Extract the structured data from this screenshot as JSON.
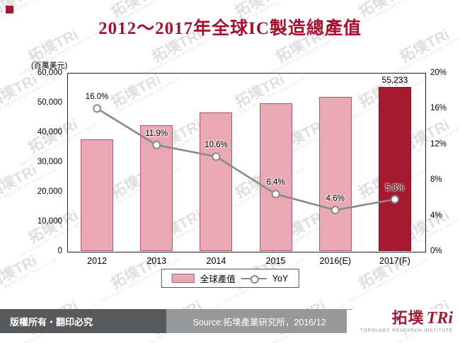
{
  "title": "2012～2017年全球IC製造總產值",
  "chart_data": {
    "type": "bar+line",
    "categories": [
      "2012",
      "2013",
      "2014",
      "2015",
      "2016(E)",
      "2017(F)"
    ],
    "series": [
      {
        "name": "全球產值",
        "type": "bar",
        "axis": "left",
        "values": [
          37700,
          42300,
          46700,
          49700,
          52000,
          55233
        ]
      },
      {
        "name": "YoY",
        "type": "line",
        "axis": "right",
        "values": [
          16.0,
          11.9,
          10.6,
          6.4,
          4.6,
          5.8
        ]
      }
    ],
    "bar_labels": [
      "",
      "",
      "",
      "",
      "",
      "55,233"
    ],
    "line_labels": [
      "16.0%",
      "11.9%",
      "10.6%",
      "6.4%",
      "4.6%",
      "5.8%"
    ],
    "highlight_index": 5,
    "left_axis": {
      "label": "(百萬美元)",
      "min": 0,
      "max": 60000,
      "step": 10000,
      "ticks": [
        "0",
        "10,000",
        "20,000",
        "30,000",
        "40,000",
        "50,000",
        "60,000"
      ]
    },
    "right_axis": {
      "min": 0,
      "max": 20,
      "step": 4,
      "ticks": [
        "0%",
        "4%",
        "8%",
        "12%",
        "16%",
        "20%"
      ]
    },
    "colors": {
      "bar": "#e9a9b4",
      "bar_border": "#b3556a",
      "bar_highlight": "#a6192e",
      "bar_highlight_border": "#7d1022",
      "line": "#8a8a8a"
    },
    "legend_position": "bottom"
  },
  "legend": {
    "bar_label": "全球產值",
    "line_label": "YoY"
  },
  "footer": {
    "copyright": "版權所有‧翻印必究",
    "source": "Source:拓墣產業研究所，2016/12"
  },
  "logo": {
    "text": "拓墣",
    "brand": "TRi",
    "subtext": "TOPOLOGY RESEARCH INSTITUTE"
  },
  "watermark": {
    "brand": "拓墣TRi",
    "subtext": "TOPOLOGY RESEARCH INSTITUTE"
  }
}
